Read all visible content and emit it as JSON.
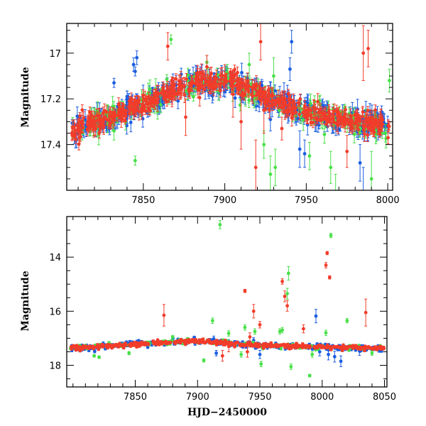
{
  "colors": {
    "blue": "#1a5de0",
    "green": "#48e048",
    "red": "#f23c2a"
  },
  "chart_data": [
    {
      "type": "scatter",
      "panel": "top",
      "xlim": [
        7803,
        8003
      ],
      "ylim": [
        17.6,
        16.87
      ],
      "y_inverted": true,
      "ylabel": "Magnitude",
      "xlabel": "",
      "x_ticks": [
        7850,
        7900,
        7950,
        8000
      ],
      "y_ticks": [
        17,
        17.2,
        17.4
      ],
      "x_tick_labels": [
        "7850",
        "7900",
        "7950",
        "8000"
      ],
      "y_tick_labels": [
        "17",
        "17.2",
        "17.4"
      ],
      "trend": [
        [
          7805,
          17.34
        ],
        [
          7830,
          17.28
        ],
        [
          7860,
          17.19
        ],
        [
          7885,
          17.12
        ],
        [
          7905,
          17.13
        ],
        [
          7925,
          17.19
        ],
        [
          7945,
          17.25
        ],
        [
          7970,
          17.29
        ],
        [
          8003,
          17.32
        ]
      ],
      "series": [
        {
          "color_key": "blue",
          "count": 480,
          "scatter": 0.025,
          "err": 0.03,
          "outliers": [
            [
              7832,
              17.13,
              0.02
            ],
            [
              7844,
              17.05,
              0.03
            ],
            [
              7846,
              17.02,
              0.03
            ],
            [
              7845,
              17.08,
              0.02
            ],
            [
              7885,
              17.12,
              0.06
            ],
            [
              7928,
              17.29,
              0.05
            ],
            [
              7940,
              17.07,
              0.05
            ],
            [
              7946,
              17.42,
              0.08
            ],
            [
              7949,
              17.44,
              0.06
            ],
            [
              7985,
              17.62,
              0.12
            ],
            [
              7983,
              17.48,
              0.08
            ],
            [
              7988,
              17.32,
              0.05
            ],
            [
              7941,
              16.95,
              0.05
            ],
            [
              7895,
              17.14,
              0.05
            ]
          ]
        },
        {
          "color_key": "green",
          "count": 180,
          "scatter": 0.03,
          "err": 0.03,
          "outliers": [
            [
              7845,
              17.47,
              0.02
            ],
            [
              7867,
              16.94,
              0.02
            ],
            [
              7818,
              17.27,
              0.03
            ],
            [
              7832,
              17.34,
              0.04
            ],
            [
              7843,
              17.26,
              0.03
            ],
            [
              7889,
              17.04,
              0.03
            ],
            [
              7913,
              17.14,
              0.04
            ],
            [
              7918,
              17.19,
              0.05
            ],
            [
              7928,
              17.53,
              0.08
            ],
            [
              7931,
              17.5,
              0.08
            ],
            [
              7952,
              17.45,
              0.06
            ],
            [
              7965,
              17.5,
              0.07
            ],
            [
              7968,
              17.62,
              0.09
            ],
            [
              7990,
              17.55,
              0.12
            ],
            [
              8001,
              17.12,
              0.05
            ],
            [
              7915,
              17.05,
              0.05
            ],
            [
              7924,
              17.4,
              0.06
            ],
            [
              7930,
              17.1,
              0.08
            ]
          ]
        },
        {
          "color_key": "red",
          "count": 560,
          "scatter": 0.022,
          "err": 0.025,
          "outliers": [
            [
              7865,
              16.97,
              0.06
            ],
            [
              7873,
              17.14,
              0.06
            ],
            [
              7876,
              17.28,
              0.08
            ],
            [
              7905,
              17.18,
              0.1
            ],
            [
              7910,
              17.3,
              0.12
            ],
            [
              7919,
              17.5,
              0.12
            ],
            [
              7922,
              16.95,
              0.08
            ],
            [
              7924,
              17.25,
              0.1
            ],
            [
              7935,
              17.33,
              0.05
            ],
            [
              7985,
              17.0,
              0.12
            ],
            [
              7988,
              16.98,
              0.08
            ],
            [
              7975,
              17.43,
              0.07
            ],
            [
              7889,
              17.06,
              0.05
            ],
            [
              7900,
              17.1,
              0.05
            ]
          ]
        }
      ]
    },
    {
      "type": "scatter",
      "panel": "bottom",
      "xlim": [
        7795,
        8052
      ],
      "ylim": [
        18.8,
        12.5
      ],
      "y_inverted": true,
      "ylabel": "Magnitude",
      "xlabel": "HJD−2450000",
      "x_ticks": [
        7850,
        7900,
        7950,
        8000,
        8050
      ],
      "y_ticks": [
        14,
        16,
        18
      ],
      "x_tick_labels": [
        "7850",
        "7900",
        "7950",
        "8000",
        "8050"
      ],
      "y_tick_labels": [
        "14",
        "16",
        "18"
      ],
      "trend": [
        [
          7805,
          17.34
        ],
        [
          7830,
          17.28
        ],
        [
          7860,
          17.19
        ],
        [
          7885,
          17.12
        ],
        [
          7905,
          17.13
        ],
        [
          7925,
          17.19
        ],
        [
          7945,
          17.25
        ],
        [
          7970,
          17.29
        ],
        [
          8003,
          17.32
        ],
        [
          8048,
          17.36
        ]
      ],
      "series": [
        {
          "color_key": "blue",
          "count": 320,
          "scatter": 0.05,
          "err": 0.05,
          "outliers": [
            [
              7913,
              17.02,
              0.1
            ],
            [
              7915,
              17.55,
              0.1
            ],
            [
              7940,
              17.25,
              0.1
            ],
            [
              7945,
              17.08,
              0.1
            ],
            [
              7950,
              17.6,
              0.15
            ],
            [
              7995,
              16.18,
              0.25
            ],
            [
              7998,
              17.5,
              0.15
            ],
            [
              8005,
              17.6,
              0.2
            ],
            [
              8010,
              17.68,
              0.2
            ],
            [
              8015,
              17.85,
              0.2
            ],
            [
              8030,
              17.48,
              0.15
            ]
          ]
        },
        {
          "color_key": "green",
          "count": 110,
          "scatter": 0.05,
          "err": 0.05,
          "outliers": [
            [
              7817,
              17.65,
              0.05
            ],
            [
              7821,
              17.7,
              0.05
            ],
            [
              7845,
              17.55,
              0.06
            ],
            [
              7880,
              16.95,
              0.05
            ],
            [
              7905,
              17.82,
              0.06
            ],
            [
              7918,
              12.8,
              0.15
            ],
            [
              7912,
              16.35,
              0.1
            ],
            [
              7925,
              16.82,
              0.1
            ],
            [
              7938,
              16.6,
              0.1
            ],
            [
              7946,
              16.75,
              0.1
            ],
            [
              7951,
              17.95,
              0.1
            ],
            [
              7966,
              16.75,
              0.1
            ],
            [
              7968,
              16.7,
              0.1
            ],
            [
              7972,
              15.35,
              0.2
            ],
            [
              7973,
              14.6,
              0.25
            ],
            [
              7975,
              18.05,
              0.1
            ],
            [
              7990,
              18.38,
              0.05
            ],
            [
              7992,
              17.6,
              0.1
            ],
            [
              8003,
              16.8,
              0.1
            ],
            [
              8007,
              13.2,
              0.08
            ],
            [
              8020,
              16.35,
              0.08
            ],
            [
              8040,
              17.55,
              0.08
            ],
            [
              7935,
              17.6,
              0.1
            ]
          ]
        },
        {
          "color_key": "red",
          "count": 420,
          "scatter": 0.04,
          "err": 0.04,
          "outliers": [
            [
              7873,
              16.15,
              0.4
            ],
            [
              7938,
              15.25,
              0.06
            ],
            [
              7942,
              16.95,
              0.15
            ],
            [
              7945,
              16.0,
              0.25
            ],
            [
              7950,
              16.5,
              0.12
            ],
            [
              7968,
              14.9,
              0.1
            ],
            [
              7970,
              15.45,
              0.2
            ],
            [
              7972,
              15.8,
              0.2
            ],
            [
              7985,
              16.65,
              0.15
            ],
            [
              8003,
              14.3,
              0.1
            ],
            [
              8004,
              13.85,
              0.06
            ],
            [
              8006,
              14.75,
              0.06
            ],
            [
              8035,
              16.05,
              0.5
            ],
            [
              7920,
              17.65,
              0.2
            ],
            [
              7940,
              17.5,
              0.2
            ],
            [
              7925,
              17.3,
              0.2
            ]
          ]
        }
      ]
    }
  ]
}
